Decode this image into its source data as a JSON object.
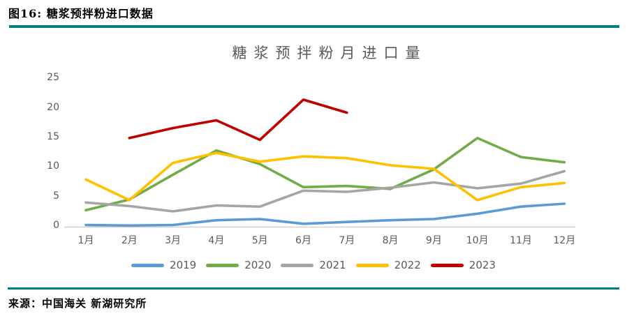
{
  "figure": {
    "caption": "图16: 糖浆预拌粉进口数据",
    "source": "来源：中国海关 新湖研究所",
    "accent_color": "#00807E"
  },
  "chart_data": {
    "type": "line",
    "title": "糖浆预拌粉月进口量",
    "categories": [
      "1月",
      "2月",
      "3月",
      "4月",
      "5月",
      "6月",
      "7月",
      "8月",
      "9月",
      "10月",
      "11月",
      "12月"
    ],
    "series": [
      {
        "name": "2019",
        "color": "#5B9BD5",
        "values": [
          0.3,
          0.2,
          0.3,
          1.1,
          1.3,
          0.5,
          0.8,
          1.1,
          1.3,
          2.2,
          3.4,
          3.9
        ]
      },
      {
        "name": "2020",
        "color": "#70AD47",
        "values": [
          2.8,
          4.6,
          8.8,
          12.9,
          10.6,
          6.7,
          6.9,
          6.4,
          9.7,
          15.0,
          11.8,
          10.9
        ]
      },
      {
        "name": "2021",
        "color": "#A5A5A5",
        "values": [
          4.1,
          3.5,
          2.6,
          3.6,
          3.4,
          6.1,
          5.9,
          6.6,
          7.5,
          6.5,
          7.3,
          9.4
        ]
      },
      {
        "name": "2022",
        "color": "#FFC000",
        "values": [
          8.0,
          4.5,
          10.8,
          12.5,
          11.0,
          11.9,
          11.6,
          10.4,
          9.8,
          4.5,
          6.7,
          7.4
        ]
      },
      {
        "name": "2023",
        "color": "#C00000",
        "values": [
          null,
          15.0,
          16.7,
          18.0,
          14.7,
          21.5,
          19.3,
          null,
          null,
          null,
          null,
          null
        ]
      }
    ],
    "ylim": [
      0,
      25
    ],
    "yticks": [
      0,
      5,
      10,
      15,
      20,
      25
    ],
    "grid": false,
    "legend_position": "bottom",
    "axis_line_color": "#D0D0D0"
  }
}
